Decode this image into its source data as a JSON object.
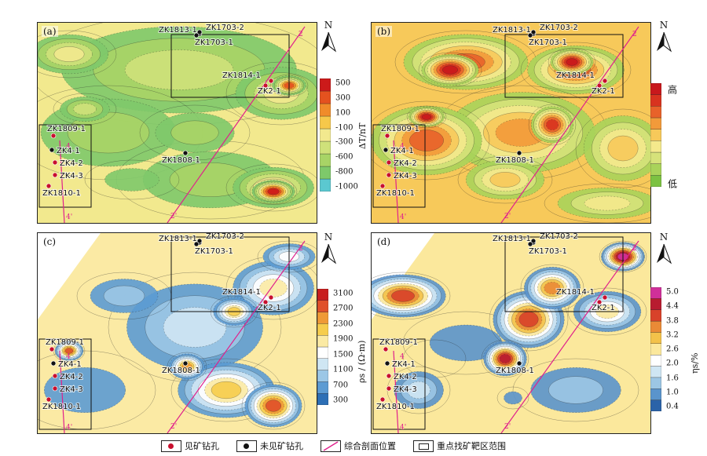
{
  "panels": [
    {
      "id": "a",
      "label": "(a)",
      "scheme": "magnetic"
    },
    {
      "id": "b",
      "label": "(b)",
      "scheme": "highlow"
    },
    {
      "id": "c",
      "label": "(c)",
      "scheme": "resist"
    },
    {
      "id": "d",
      "label": "(d)",
      "scheme": "resist"
    }
  ],
  "north_label": "N",
  "colorbars": {
    "a": {
      "title": "ΔT/nT",
      "ticks": [
        "500",
        "300",
        "100",
        "-100",
        "-300",
        "-600",
        "-800",
        "-1000"
      ]
    },
    "b": {
      "high": "高",
      "low": "低"
    },
    "c": {
      "title": "ρs / (Ω·m)",
      "ticks": [
        "3100",
        "2700",
        "2300",
        "1900",
        "1500",
        "1100",
        "700",
        "300"
      ]
    },
    "d": {
      "title": "ηs/%",
      "ticks": [
        "5.0",
        "4.4",
        "3.8",
        "3.2",
        "2.6",
        "2.0",
        "1.6",
        "1.0",
        "0.4"
      ]
    }
  },
  "drill_holes": [
    {
      "name": "ZK1813-1",
      "type": "barren"
    },
    {
      "name": "ZK1703-2",
      "type": "barren"
    },
    {
      "name": "ZK1703-1",
      "type": "barren"
    },
    {
      "name": "ZK1814-1",
      "type": "ore"
    },
    {
      "name": "ZK2-1",
      "type": "ore"
    },
    {
      "name": "ZK1809-1",
      "type": "ore"
    },
    {
      "name": "ZK4-1",
      "type": "barren"
    },
    {
      "name": "ZK4-2",
      "type": "ore"
    },
    {
      "name": "ZK4-3",
      "type": "ore"
    },
    {
      "name": "ZK1810-1",
      "type": "ore"
    },
    {
      "name": "ZK1808-1",
      "type": "barren"
    }
  ],
  "profile_labels": [
    "2",
    "2'",
    "4",
    "4'"
  ],
  "legend": {
    "ore_hole": "见矿钻孔",
    "barren_hole": "未见矿钻孔",
    "profile": "综合剖面位置",
    "target": "重点找矿靶区范围"
  },
  "colors": {
    "ore_dot": "#c8102e",
    "barren_dot": "#111111",
    "profile_line": "#e0208c"
  }
}
